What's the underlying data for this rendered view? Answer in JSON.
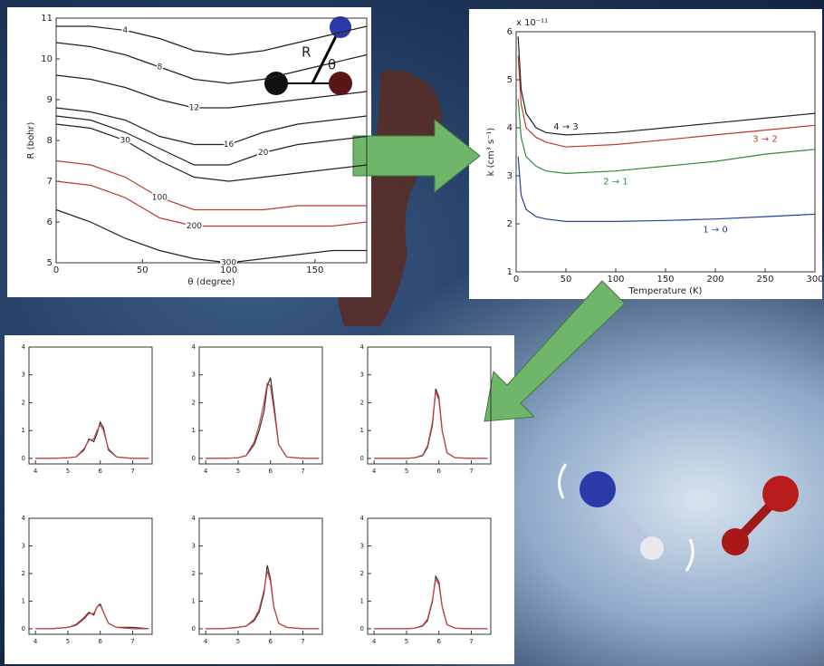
{
  "chart_data": [
    {
      "type": "contour",
      "xlabel": "θ (degree)",
      "ylabel": "R (bohr)",
      "annotations": [
        "R",
        "θ"
      ],
      "xlim": [
        0,
        180
      ],
      "ylim": [
        5,
        11
      ],
      "xticks": [
        0,
        50,
        100,
        150
      ],
      "yticks": [
        5,
        6,
        7,
        8,
        9,
        10,
        11
      ],
      "x": [
        0,
        20,
        40,
        60,
        80,
        100,
        120,
        140,
        160,
        180
      ],
      "series": [
        {
          "name": "4",
          "color": "#222222",
          "values": [
            10.8,
            10.8,
            10.7,
            10.5,
            10.2,
            10.1,
            10.2,
            10.4,
            10.6,
            10.8
          ]
        },
        {
          "name": "8",
          "color": "#222222",
          "values": [
            10.4,
            10.3,
            10.1,
            9.8,
            9.5,
            9.4,
            9.5,
            9.7,
            9.9,
            10.1
          ]
        },
        {
          "name": "12",
          "color": "#222222",
          "values": [
            9.6,
            9.5,
            9.3,
            9.0,
            8.8,
            8.8,
            8.9,
            9.0,
            9.1,
            9.2
          ]
        },
        {
          "name": "16",
          "color": "#222222",
          "values": [
            8.8,
            8.7,
            8.5,
            8.1,
            7.9,
            7.9,
            8.2,
            8.4,
            8.5,
            8.6
          ]
        },
        {
          "name": "20",
          "color": "#222222",
          "values": [
            8.6,
            8.5,
            8.2,
            7.8,
            7.4,
            7.4,
            7.7,
            7.9,
            8.0,
            8.1
          ]
        },
        {
          "name": "30",
          "color": "#222222",
          "values": [
            8.4,
            8.3,
            8.0,
            7.5,
            7.1,
            7.0,
            7.1,
            7.2,
            7.3,
            7.4
          ]
        },
        {
          "name": "100",
          "color": "#c0392b",
          "values": [
            7.5,
            7.4,
            7.1,
            6.6,
            6.3,
            6.3,
            6.3,
            6.4,
            6.4,
            6.4
          ]
        },
        {
          "name": "200",
          "color": "#c0392b",
          "values": [
            7.0,
            6.9,
            6.6,
            6.1,
            5.9,
            5.9,
            5.9,
            5.9,
            5.9,
            6.0
          ]
        },
        {
          "name": "300",
          "color": "#222222",
          "values": [
            6.3,
            6.0,
            5.6,
            5.3,
            5.1,
            5.0,
            5.1,
            5.2,
            5.3,
            5.3
          ]
        }
      ]
    },
    {
      "type": "line",
      "xlabel": "Temperature (K)",
      "ylabel": "k (cm³ s⁻¹)",
      "y_scale_label": "x 10⁻¹¹",
      "xlim": [
        0,
        300
      ],
      "ylim": [
        1,
        6
      ],
      "xticks": [
        0,
        50,
        100,
        150,
        200,
        250,
        300
      ],
      "yticks": [
        1,
        2,
        3,
        4,
        5,
        6
      ],
      "x": [
        2,
        5,
        10,
        20,
        30,
        50,
        100,
        150,
        200,
        250,
        300
      ],
      "series": [
        {
          "name": "4 → 3",
          "color": "#222222",
          "values": [
            5.9,
            4.8,
            4.3,
            4.0,
            3.9,
            3.85,
            3.9,
            4.0,
            4.1,
            4.2,
            4.3
          ]
        },
        {
          "name": "3 → 2",
          "color": "#c0392b",
          "values": [
            5.5,
            4.5,
            4.0,
            3.8,
            3.7,
            3.6,
            3.65,
            3.75,
            3.85,
            3.95,
            4.05
          ]
        },
        {
          "name": "2 → 1",
          "color": "#2e8b3e",
          "values": [
            4.6,
            3.8,
            3.4,
            3.2,
            3.1,
            3.05,
            3.1,
            3.2,
            3.3,
            3.45,
            3.55
          ]
        },
        {
          "name": "1 → 0",
          "color": "#2a3ea0",
          "values": [
            3.4,
            2.6,
            2.3,
            2.15,
            2.1,
            2.05,
            2.05,
            2.07,
            2.1,
            2.15,
            2.2
          ]
        }
      ]
    },
    {
      "type": "line",
      "xlim": [
        3.8,
        7.6
      ],
      "ylim": [
        -0.2,
        4
      ],
      "xticks": [
        4,
        5,
        6,
        7
      ],
      "yticks": [
        0,
        1,
        2,
        3,
        4
      ],
      "x": [
        4,
        4.5,
        5,
        5.25,
        5.5,
        5.65,
        5.8,
        5.9,
        6.0,
        6.1,
        6.25,
        6.5,
        7,
        7.5
      ],
      "series": [
        {
          "color": "#333333",
          "values": [
            0,
            0,
            0.02,
            0.05,
            0.3,
            0.7,
            0.6,
            0.9,
            1.3,
            1.1,
            0.3,
            0.05,
            0,
            0
          ]
        },
        {
          "color": "#d04040",
          "values": [
            0,
            0,
            0.02,
            0.05,
            0.35,
            0.65,
            0.7,
            1.0,
            1.2,
            1.0,
            0.35,
            0.05,
            0,
            0
          ]
        }
      ]
    },
    {
      "type": "line",
      "xlim": [
        3.8,
        7.6
      ],
      "ylim": [
        -0.2,
        4
      ],
      "xticks": [
        4,
        5,
        6,
        7
      ],
      "yticks": [
        0,
        1,
        2,
        3,
        4
      ],
      "x": [
        4,
        4.5,
        5,
        5.25,
        5.5,
        5.65,
        5.8,
        5.9,
        6.0,
        6.1,
        6.25,
        6.5,
        7,
        7.5
      ],
      "series": [
        {
          "color": "#333333",
          "values": [
            0,
            0,
            0.02,
            0.1,
            0.5,
            1.0,
            1.7,
            2.6,
            2.9,
            2.0,
            0.5,
            0.05,
            0,
            0
          ]
        },
        {
          "color": "#d04040",
          "values": [
            0,
            0,
            0.02,
            0.1,
            0.6,
            1.2,
            2.0,
            2.7,
            2.6,
            1.8,
            0.5,
            0.05,
            0,
            0
          ]
        }
      ]
    },
    {
      "type": "line",
      "xlim": [
        3.8,
        7.6
      ],
      "ylim": [
        -0.2,
        4
      ],
      "xticks": [
        4,
        5,
        6,
        7
      ],
      "yticks": [
        0,
        1,
        2,
        3,
        4
      ],
      "x": [
        4,
        4.5,
        5,
        5.25,
        5.5,
        5.65,
        5.8,
        5.9,
        6.0,
        6.1,
        6.25,
        6.5,
        7,
        7.5
      ],
      "series": [
        {
          "color": "#333333",
          "values": [
            0,
            0,
            0,
            0.02,
            0.1,
            0.4,
            1.2,
            2.5,
            2.2,
            1.0,
            0.2,
            0.02,
            0,
            0
          ]
        },
        {
          "color": "#d04040",
          "values": [
            0,
            0,
            0,
            0.02,
            0.12,
            0.45,
            1.3,
            2.4,
            2.1,
            1.0,
            0.2,
            0.02,
            0,
            0
          ]
        }
      ]
    },
    {
      "type": "line",
      "xlim": [
        3.8,
        7.6
      ],
      "ylim": [
        -0.2,
        4
      ],
      "xticks": [
        4,
        5,
        6,
        7
      ],
      "yticks": [
        0,
        1,
        2,
        3,
        4
      ],
      "x": [
        4,
        4.5,
        5,
        5.25,
        5.5,
        5.65,
        5.8,
        5.9,
        6.0,
        6.1,
        6.25,
        6.5,
        7,
        7.5
      ],
      "series": [
        {
          "color": "#333333",
          "values": [
            0,
            0,
            0.05,
            0.15,
            0.4,
            0.6,
            0.5,
            0.8,
            0.9,
            0.6,
            0.2,
            0.05,
            0.05,
            0
          ]
        },
        {
          "color": "#d04040",
          "values": [
            0,
            0,
            0.05,
            0.12,
            0.35,
            0.55,
            0.55,
            0.8,
            0.85,
            0.6,
            0.2,
            0.05,
            0,
            0
          ]
        }
      ]
    },
    {
      "type": "line",
      "xlim": [
        3.8,
        7.6
      ],
      "ylim": [
        -0.2,
        4
      ],
      "xticks": [
        4,
        5,
        6,
        7
      ],
      "yticks": [
        0,
        1,
        2,
        3,
        4
      ],
      "x": [
        4,
        4.5,
        5,
        5.25,
        5.5,
        5.65,
        5.8,
        5.9,
        6.0,
        6.1,
        6.25,
        6.5,
        7,
        7.5
      ],
      "series": [
        {
          "color": "#333333",
          "values": [
            0,
            0,
            0.05,
            0.1,
            0.3,
            0.6,
            1.3,
            2.3,
            1.8,
            0.8,
            0.2,
            0.05,
            0,
            0
          ]
        },
        {
          "color": "#d04040",
          "values": [
            0,
            0,
            0.05,
            0.1,
            0.35,
            0.7,
            1.4,
            2.1,
            1.7,
            0.8,
            0.2,
            0.05,
            0,
            0
          ]
        }
      ]
    },
    {
      "type": "line",
      "xlim": [
        3.8,
        7.6
      ],
      "ylim": [
        -0.2,
        4
      ],
      "xticks": [
        4,
        5,
        6,
        7
      ],
      "yticks": [
        0,
        1,
        2,
        3,
        4
      ],
      "x": [
        4,
        4.5,
        5,
        5.25,
        5.5,
        5.65,
        5.8,
        5.9,
        6.0,
        6.1,
        6.25,
        6.5,
        7,
        7.5
      ],
      "series": [
        {
          "color": "#333333",
          "values": [
            0,
            0,
            0,
            0.02,
            0.1,
            0.3,
            1.0,
            1.9,
            1.7,
            0.8,
            0.15,
            0.02,
            0,
            0
          ]
        },
        {
          "color": "#d04040",
          "values": [
            0,
            0,
            0,
            0.02,
            0.12,
            0.35,
            1.05,
            1.8,
            1.6,
            0.8,
            0.15,
            0.02,
            0,
            0
          ]
        }
      ]
    }
  ]
}
